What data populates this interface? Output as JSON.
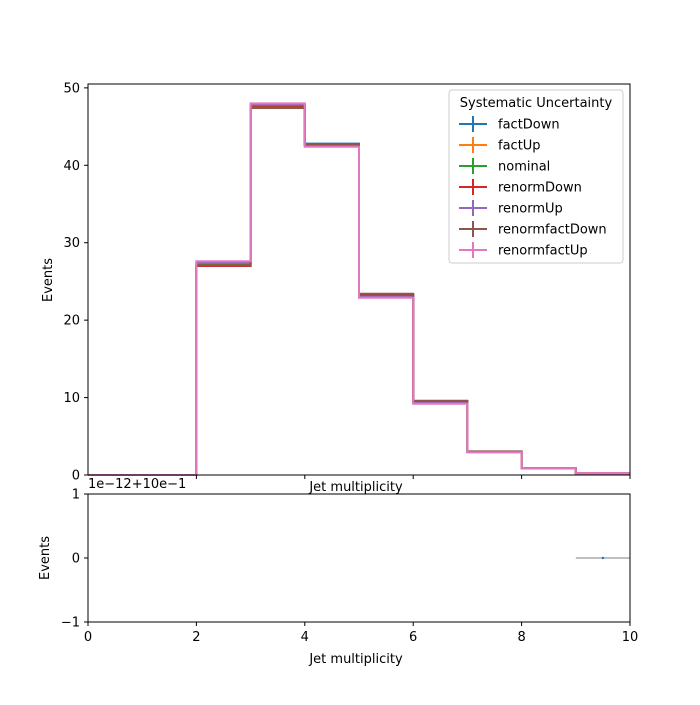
{
  "chart_data": [
    {
      "type": "line",
      "drawstyle": "steps",
      "xlabel": "Jet multiplicity",
      "ylabel": "Events",
      "xlim": [
        0,
        10
      ],
      "ylim": [
        0,
        50.5
      ],
      "bin_edges": [
        0,
        1,
        2,
        3,
        4,
        5,
        6,
        7,
        8,
        9,
        10
      ],
      "xticks": [
        {
          "value": 2,
          "label": ""
        },
        {
          "value": 4,
          "label": ""
        },
        {
          "value": 6,
          "label": ""
        },
        {
          "value": 8,
          "label": ""
        },
        {
          "value": 10,
          "label": ""
        }
      ],
      "yticks": [
        {
          "value": 0,
          "label": "0"
        },
        {
          "value": 10,
          "label": "10"
        },
        {
          "value": 20,
          "label": "20"
        },
        {
          "value": 30,
          "label": "30"
        },
        {
          "value": 40,
          "label": "40"
        },
        {
          "value": 50,
          "label": "50"
        }
      ],
      "legend": {
        "title": "Systematic Uncertainty",
        "position": "top-right"
      },
      "series": [
        {
          "name": "factDown",
          "color": "#1f77b4",
          "values": [
            0,
            0,
            27.3,
            47.6,
            42.8,
            23.3,
            9.5,
            3.0,
            0.85,
            0.25
          ]
        },
        {
          "name": "factUp",
          "color": "#ff7f0e",
          "values": [
            0,
            0,
            27.3,
            47.8,
            42.6,
            23.1,
            9.3,
            3.0,
            0.85,
            0.25
          ]
        },
        {
          "name": "nominal",
          "color": "#2ca02c",
          "values": [
            0,
            0,
            27.2,
            47.7,
            42.7,
            23.2,
            9.4,
            3.0,
            0.85,
            0.25
          ]
        },
        {
          "name": "renormDown",
          "color": "#d62728",
          "values": [
            0,
            0,
            27.0,
            47.5,
            42.6,
            23.3,
            9.5,
            3.0,
            0.85,
            0.25
          ]
        },
        {
          "name": "renormUp",
          "color": "#9467bd",
          "values": [
            0,
            0,
            27.5,
            47.9,
            42.5,
            23.0,
            9.3,
            2.95,
            0.85,
            0.25
          ]
        },
        {
          "name": "renormfactDown",
          "color": "#8c564b",
          "values": [
            0,
            0,
            27.1,
            47.4,
            42.7,
            23.4,
            9.6,
            3.05,
            0.85,
            0.25
          ]
        },
        {
          "name": "renormfactUp",
          "color": "#e377c2",
          "values": [
            0,
            0,
            27.6,
            48.0,
            42.4,
            22.9,
            9.2,
            2.95,
            0.85,
            0.25
          ]
        }
      ]
    },
    {
      "type": "line",
      "xlabel": "Jet multiplicity",
      "ylabel": "Events",
      "offset_label": "1e−12+10e−1",
      "xlim": [
        0,
        10
      ],
      "ylim": [
        -1,
        1
      ],
      "xticks": [
        {
          "value": 0,
          "label": "0"
        },
        {
          "value": 2,
          "label": "2"
        },
        {
          "value": 4,
          "label": "4"
        },
        {
          "value": 6,
          "label": "6"
        },
        {
          "value": 8,
          "label": "8"
        },
        {
          "value": 10,
          "label": "10"
        }
      ],
      "yticks": [
        {
          "value": -1,
          "label": "−1"
        },
        {
          "value": 0,
          "label": "0"
        },
        {
          "value": 1,
          "label": "1"
        }
      ],
      "series": [
        {
          "color": "#aaaaaa",
          "x": [
            9,
            10
          ],
          "values": [
            0,
            0
          ]
        },
        {
          "color": "#1f77b4",
          "x": [
            9.5
          ],
          "values": [
            0
          ]
        }
      ]
    }
  ]
}
